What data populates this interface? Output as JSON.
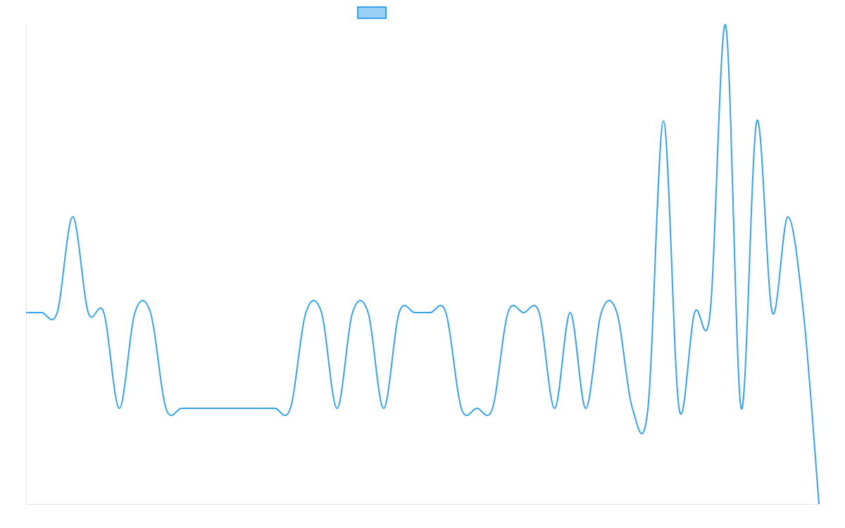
{
  "chart_data": {
    "type": "line",
    "title": "",
    "xlabel": "",
    "ylabel": "",
    "legend": {
      "placement": "top-center",
      "swatch_fill": "#9ad0f5",
      "swatch_stroke": "#36a2eb"
    },
    "grid": false,
    "colors": {
      "line": "#36a2eb",
      "axis": "#e5e5e5"
    },
    "xlim": [
      0,
      51
    ],
    "ylim": [
      -2,
      3
    ],
    "series": [
      {
        "values": [
          0,
          0,
          0,
          1,
          0,
          0,
          -1,
          0,
          0,
          -1,
          -1,
          -1,
          -1,
          -1,
          -1,
          -1,
          -1,
          -1,
          0,
          0,
          -1,
          0,
          0,
          -1,
          0,
          0,
          0,
          0,
          -1,
          -1,
          -1,
          0,
          0,
          0,
          -1,
          0,
          -1,
          0,
          0,
          -1,
          -1,
          2,
          -1,
          0,
          0,
          3,
          -1,
          2,
          0,
          1,
          0,
          -2
        ]
      }
    ]
  }
}
